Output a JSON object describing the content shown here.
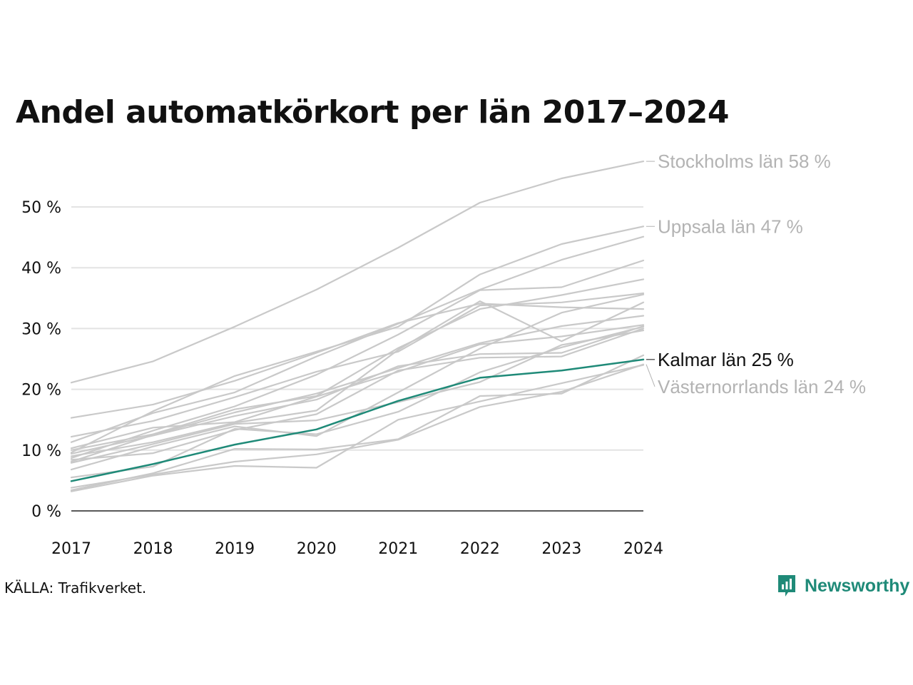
{
  "title": "Andel automatkörkort per län 2017–2024",
  "source": "KÄLLA: Trafikverket.",
  "brand": {
    "name": "Newsworthy",
    "icon": "newsworthy-logo-icon",
    "color": "#1f8a78"
  },
  "colors": {
    "highlight": "#1f8a78",
    "background_series": "#c9c9c9",
    "grid": "#e3e3e3",
    "axis": "#222222"
  },
  "chart_data": {
    "type": "line",
    "title": "Andel automatkörkort per län 2017–2024",
    "xlabel": "",
    "ylabel": "",
    "x": [
      2017,
      2018,
      2019,
      2020,
      2021,
      2022,
      2023,
      2024
    ],
    "x_ticks": [
      "2017",
      "2018",
      "2019",
      "2020",
      "2021",
      "2022",
      "2023",
      "2024"
    ],
    "ylim": [
      0,
      58
    ],
    "y_ticks": [
      0,
      10,
      20,
      30,
      40,
      50
    ],
    "y_tick_labels": [
      "0 %",
      "10 %",
      "20 %",
      "30 %",
      "40 %",
      "50 %"
    ],
    "grid": "horizontal",
    "series": [
      {
        "name": "Stockholms län",
        "label": "Stockholms län 58 %",
        "highlight": false,
        "labeled": true,
        "values": [
          21.1,
          24.6,
          30.3,
          36.4,
          43.3,
          50.7,
          54.7,
          57.5
        ]
      },
      {
        "name": "Uppsala län",
        "label": "Uppsala län 47 %",
        "highlight": false,
        "labeled": true,
        "values": [
          9.6,
          16.4,
          22.2,
          26.2,
          30.3,
          38.9,
          43.9,
          46.8
        ]
      },
      {
        "name": "",
        "highlight": false,
        "labeled": false,
        "values": [
          11.3,
          16.1,
          19.5,
          25.4,
          30.8,
          36.4,
          41.3,
          45.1
        ]
      },
      {
        "name": "",
        "highlight": false,
        "labeled": false,
        "values": [
          8.7,
          13.2,
          17.2,
          22.4,
          29.0,
          36.3,
          36.8,
          41.2
        ]
      },
      {
        "name": "",
        "highlight": false,
        "labeled": false,
        "values": [
          10.0,
          12.6,
          16.7,
          18.9,
          26.8,
          33.2,
          35.5,
          38.1
        ]
      },
      {
        "name": "",
        "highlight": false,
        "labeled": false,
        "values": [
          12.2,
          14.8,
          18.7,
          22.9,
          26.2,
          33.8,
          34.3,
          35.8
        ]
      },
      {
        "name": "",
        "highlight": false,
        "labeled": false,
        "values": [
          9.0,
          11.3,
          14.5,
          16.5,
          26.5,
          34.5,
          27.9,
          34.3
        ]
      },
      {
        "name": "",
        "highlight": false,
        "labeled": false,
        "values": [
          15.3,
          17.5,
          21.4,
          26.0,
          30.9,
          34.1,
          33.5,
          33.2
        ]
      },
      {
        "name": "",
        "highlight": false,
        "labeled": false,
        "values": [
          8.1,
          12.5,
          16.2,
          19.3,
          23.5,
          27.6,
          30.4,
          32.1
        ]
      },
      {
        "name": "",
        "highlight": false,
        "labeled": false,
        "values": [
          10.3,
          13.7,
          14.6,
          18.8,
          22.9,
          27.4,
          28.7,
          30.6
        ]
      },
      {
        "name": "",
        "highlight": false,
        "labeled": false,
        "values": [
          9.4,
          12.4,
          15.6,
          18.3,
          23.8,
          25.8,
          26.0,
          30.4
        ]
      },
      {
        "name": "",
        "highlight": false,
        "labeled": false,
        "values": [
          8.4,
          9.5,
          13.3,
          15.9,
          23.1,
          25.2,
          25.4,
          30.0
        ]
      },
      {
        "name": "",
        "highlight": false,
        "labeled": false,
        "values": [
          7.9,
          11.0,
          14.3,
          14.9,
          17.9,
          21.2,
          27.3,
          29.7
        ]
      },
      {
        "name": "",
        "highlight": false,
        "labeled": false,
        "values": [
          6.8,
          10.6,
          13.9,
          12.3,
          19.5,
          26.7,
          32.6,
          35.6
        ]
      },
      {
        "name": "",
        "highlight": false,
        "labeled": false,
        "values": [
          5.5,
          7.3,
          13.5,
          12.6,
          16.3,
          22.8,
          26.9,
          30.3
        ]
      },
      {
        "name": "",
        "highlight": false,
        "labeled": false,
        "values": [
          3.4,
          6.2,
          10.2,
          10.1,
          11.8,
          18.9,
          19.3,
          25.6
        ]
      },
      {
        "name": "",
        "highlight": false,
        "labeled": false,
        "values": [
          3.2,
          5.8,
          7.4,
          7.1,
          15.0,
          18.0,
          21.0,
          24.0
        ]
      },
      {
        "name": "Kalmar län",
        "label": "Kalmar län 25 %",
        "highlight": true,
        "labeled": true,
        "values": [
          4.9,
          7.7,
          10.9,
          13.4,
          18.1,
          21.9,
          23.1,
          24.9
        ]
      },
      {
        "name": "Västernorrlands län",
        "label": "Västernorrlands län 24 %",
        "highlight": false,
        "labeled": true,
        "values": [
          3.8,
          6.0,
          8.1,
          9.3,
          11.7,
          17.1,
          19.6,
          24.1
        ]
      }
    ]
  }
}
